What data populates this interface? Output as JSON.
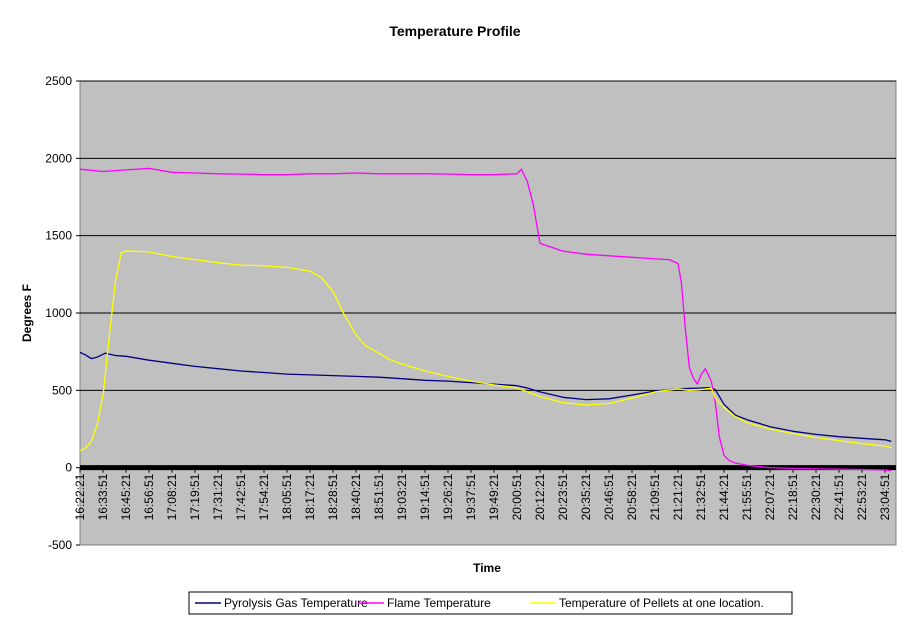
{
  "chart_data": {
    "type": "line",
    "title": "Temperature Profile",
    "xlabel": "Time",
    "ylabel": "Degrees F",
    "ylim": [
      -500,
      2500
    ],
    "yticks": [
      -500,
      0,
      500,
      1000,
      1500,
      2000,
      2500
    ],
    "grid": "horizontal major gridlines",
    "plot_background": "#c0c0c0",
    "legend_position": "bottom",
    "x_tick_labels": [
      "16:22:21",
      "16:33:51",
      "16:45:21",
      "16:56:51",
      "17:08:21",
      "17:19:51",
      "17:31:21",
      "17:42:51",
      "17:54:21",
      "18:05:51",
      "18:17:21",
      "18:28:51",
      "18:40:21",
      "18:51:51",
      "19:03:21",
      "19:14:51",
      "19:26:21",
      "19:37:51",
      "19:49:21",
      "20:00:51",
      "20:12:21",
      "20:23:51",
      "20:35:21",
      "20:46:51",
      "20:58:21",
      "21:09:51",
      "21:21:21",
      "21:32:51",
      "21:44:21",
      "21:55:51",
      "22:07:21",
      "22:18:51",
      "22:30:21",
      "22:41:51",
      "22:53:21",
      "23:04:51"
    ],
    "series": [
      {
        "name": "Pyrolysis Gas Temperature",
        "color": "#000080",
        "x": [
          "16:22:21",
          "16:25:00",
          "16:28:00",
          "16:31:00",
          "16:35:00",
          "16:40:00",
          "16:45:21",
          "16:56:51",
          "17:08:21",
          "17:19:51",
          "17:31:21",
          "17:42:51",
          "17:54:21",
          "18:05:51",
          "18:17:21",
          "18:28:51",
          "18:40:21",
          "18:51:51",
          "19:03:21",
          "19:14:51",
          "19:26:21",
          "19:37:51",
          "19:49:21",
          "20:00:51",
          "20:06:00",
          "20:12:21",
          "20:23:51",
          "20:35:21",
          "20:46:51",
          "20:58:21",
          "21:09:51",
          "21:21:21",
          "21:32:51",
          "21:37:00",
          "21:40:00",
          "21:44:21",
          "21:50:00",
          "21:55:51",
          "22:07:21",
          "22:18:51",
          "22:30:21",
          "22:41:51",
          "22:53:21",
          "23:04:51",
          "23:08:00"
        ],
        "y": [
          745,
          730,
          705,
          715,
          740,
          725,
          720,
          695,
          675,
          655,
          640,
          625,
          615,
          605,
          600,
          595,
          590,
          585,
          575,
          565,
          560,
          550,
          540,
          530,
          515,
          490,
          455,
          440,
          445,
          470,
          495,
          510,
          515,
          518,
          505,
          410,
          340,
          310,
          265,
          235,
          215,
          200,
          190,
          180,
          170
        ]
      },
      {
        "name": "Flame Temperature",
        "color": "#ff00ff",
        "x": [
          "16:22:21",
          "16:33:51",
          "16:45:21",
          "16:56:51",
          "17:08:21",
          "17:19:51",
          "17:31:21",
          "17:42:51",
          "17:54:21",
          "18:05:51",
          "18:17:21",
          "18:28:51",
          "18:40:21",
          "18:51:51",
          "19:03:21",
          "19:14:51",
          "19:26:21",
          "19:37:51",
          "19:49:21",
          "20:00:51",
          "20:03:00",
          "20:06:00",
          "20:09:00",
          "20:12:21",
          "20:23:51",
          "20:35:21",
          "20:46:51",
          "20:58:21",
          "21:09:51",
          "21:17:00",
          "21:21:21",
          "21:23:00",
          "21:25:00",
          "21:27:00",
          "21:29:00",
          "21:31:00",
          "21:32:51",
          "21:35:00",
          "21:38:00",
          "21:40:00",
          "21:42:00",
          "21:44:21",
          "21:47:00",
          "21:50:00",
          "21:55:51",
          "22:07:21",
          "22:18:51",
          "22:30:21",
          "22:41:51",
          "22:53:21",
          "23:04:51",
          "23:08:00"
        ],
        "y": [
          1930,
          1915,
          1925,
          1935,
          1910,
          1905,
          1900,
          1898,
          1895,
          1895,
          1900,
          1900,
          1905,
          1900,
          1900,
          1900,
          1898,
          1895,
          1895,
          1900,
          1930,
          1850,
          1700,
          1450,
          1400,
          1380,
          1370,
          1360,
          1350,
          1345,
          1320,
          1200,
          900,
          650,
          580,
          540,
          600,
          640,
          560,
          420,
          200,
          80,
          45,
          30,
          15,
          0,
          -5,
          -8,
          -10,
          -12,
          -15,
          -18
        ]
      },
      {
        "name": "Temperature of Pellets at one location.",
        "color": "#ffff00",
        "x": [
          "16:22:21",
          "16:25:00",
          "16:28:00",
          "16:31:00",
          "16:34:00",
          "16:37:00",
          "16:40:00",
          "16:43:00",
          "16:45:21",
          "16:48:00",
          "16:56:51",
          "17:08:21",
          "17:19:51",
          "17:31:21",
          "17:42:51",
          "17:54:21",
          "18:05:51",
          "18:17:21",
          "18:23:00",
          "18:28:51",
          "18:34:00",
          "18:40:21",
          "18:45:00",
          "18:51:51",
          "18:57:00",
          "19:03:21",
          "19:14:51",
          "19:26:21",
          "19:37:51",
          "19:49:21",
          "20:00:51",
          "20:12:21",
          "20:23:51",
          "20:35:21",
          "20:46:51",
          "20:58:21",
          "21:09:51",
          "21:21:21",
          "21:27:00",
          "21:32:51",
          "21:38:00",
          "21:40:00",
          "21:44:21",
          "21:50:00",
          "21:55:51",
          "22:07:21",
          "22:18:51",
          "22:30:21",
          "22:41:51",
          "22:53:21",
          "23:04:51",
          "23:08:00"
        ],
        "y": [
          110,
          125,
          170,
          280,
          480,
          850,
          1200,
          1390,
          1400,
          1400,
          1395,
          1365,
          1345,
          1325,
          1310,
          1305,
          1295,
          1270,
          1230,
          1140,
          1000,
          860,
          790,
          740,
          700,
          670,
          625,
          590,
          560,
          535,
          515,
          460,
          420,
          405,
          415,
          450,
          490,
          510,
          500,
          505,
          515,
          450,
          390,
          330,
          290,
          250,
          220,
          195,
          175,
          155,
          140,
          130
        ]
      }
    ]
  }
}
